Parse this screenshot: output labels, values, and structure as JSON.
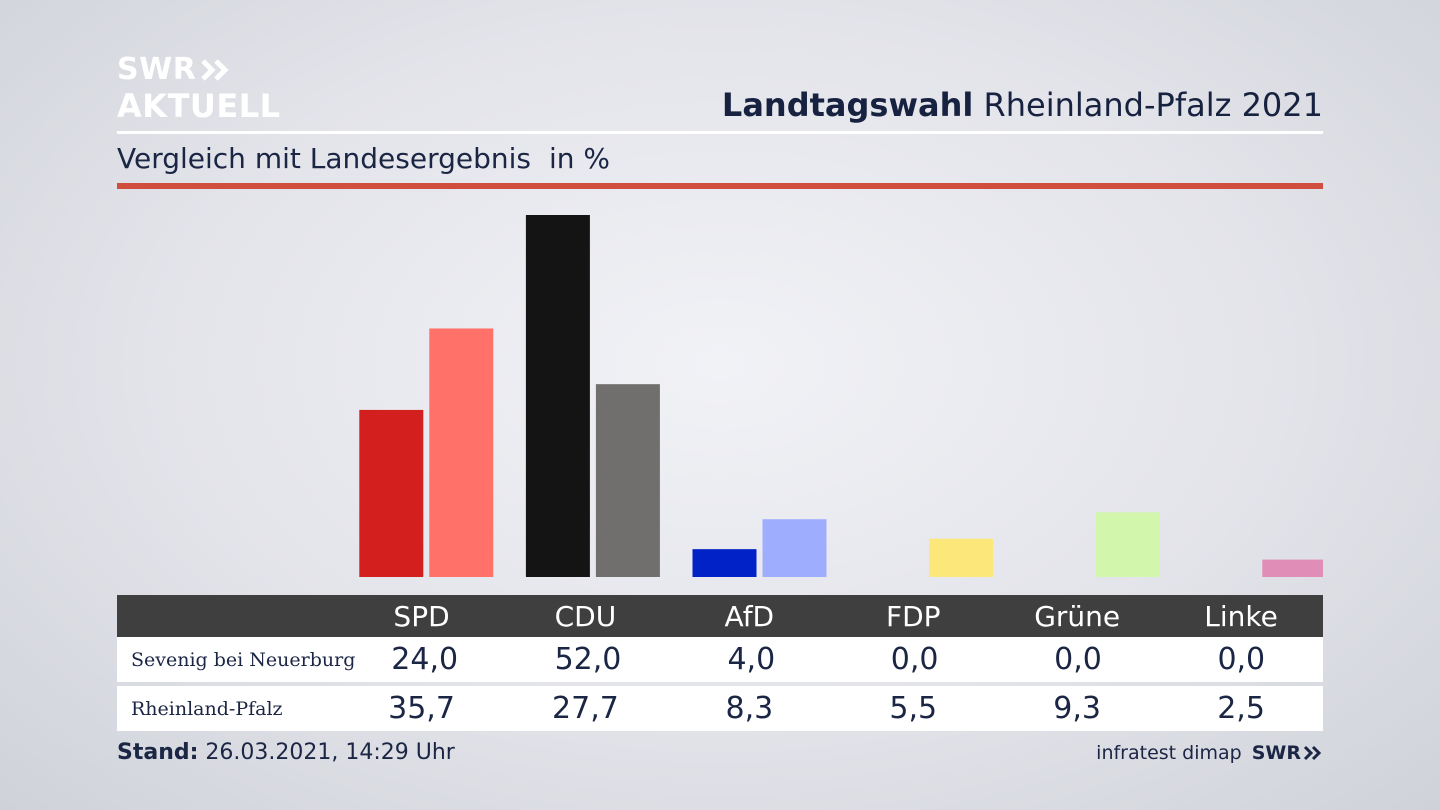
{
  "brand": {
    "line1": "SWR",
    "line2": "AKTUELL",
    "chevron_icon": "double-chevron-right-icon"
  },
  "header": {
    "title_bold": "Landtagswahl",
    "title_rest": "Rheinland-Pfalz 2021"
  },
  "subtitle": {
    "text": "Vergleich mit Landesergebnis",
    "unit": "in %"
  },
  "colors": {
    "accent_rule": "#cf4e3d",
    "table_header_bg": "#3f3f3f"
  },
  "chart_data": {
    "type": "bar",
    "categories": [
      "SPD",
      "CDU",
      "AfD",
      "FDP",
      "Grüne",
      "Linke"
    ],
    "series": [
      {
        "name": "Sevenig bei Neuerburg",
        "values": [
          24.0,
          52.0,
          4.0,
          0.0,
          0.0,
          0.0
        ],
        "colors": [
          "#d41f1f",
          "#141414",
          "#0022c6",
          "#f3dc2c",
          "#4fa43a",
          "#b7247a"
        ]
      },
      {
        "name": "Rheinland-Pfalz",
        "values": [
          35.7,
          27.7,
          8.3,
          5.5,
          9.3,
          2.5
        ],
        "colors": [
          "#ff7169",
          "#706f6d",
          "#9fadff",
          "#fce77b",
          "#d2f6ac",
          "#e08db7"
        ]
      }
    ],
    "ylim": [
      0,
      52.0
    ]
  },
  "table": {
    "headers": [
      "SPD",
      "CDU",
      "AfD",
      "FDP",
      "Grüne",
      "Linke"
    ],
    "rows": [
      {
        "label": "Sevenig bei Neuerburg",
        "values": [
          "24,0",
          "52,0",
          "4,0",
          "0,0",
          "0,0",
          "0,0"
        ]
      },
      {
        "label": "Rheinland-Pfalz",
        "values": [
          "35,7",
          "27,7",
          "8,3",
          "5,5",
          "9,3",
          "2,5"
        ]
      }
    ]
  },
  "footer": {
    "stand_label": "Stand:",
    "stand_value": "26.03.2021, 14:29 Uhr"
  },
  "source": {
    "institute": "infratest dimap",
    "broadcaster": "SWR"
  }
}
